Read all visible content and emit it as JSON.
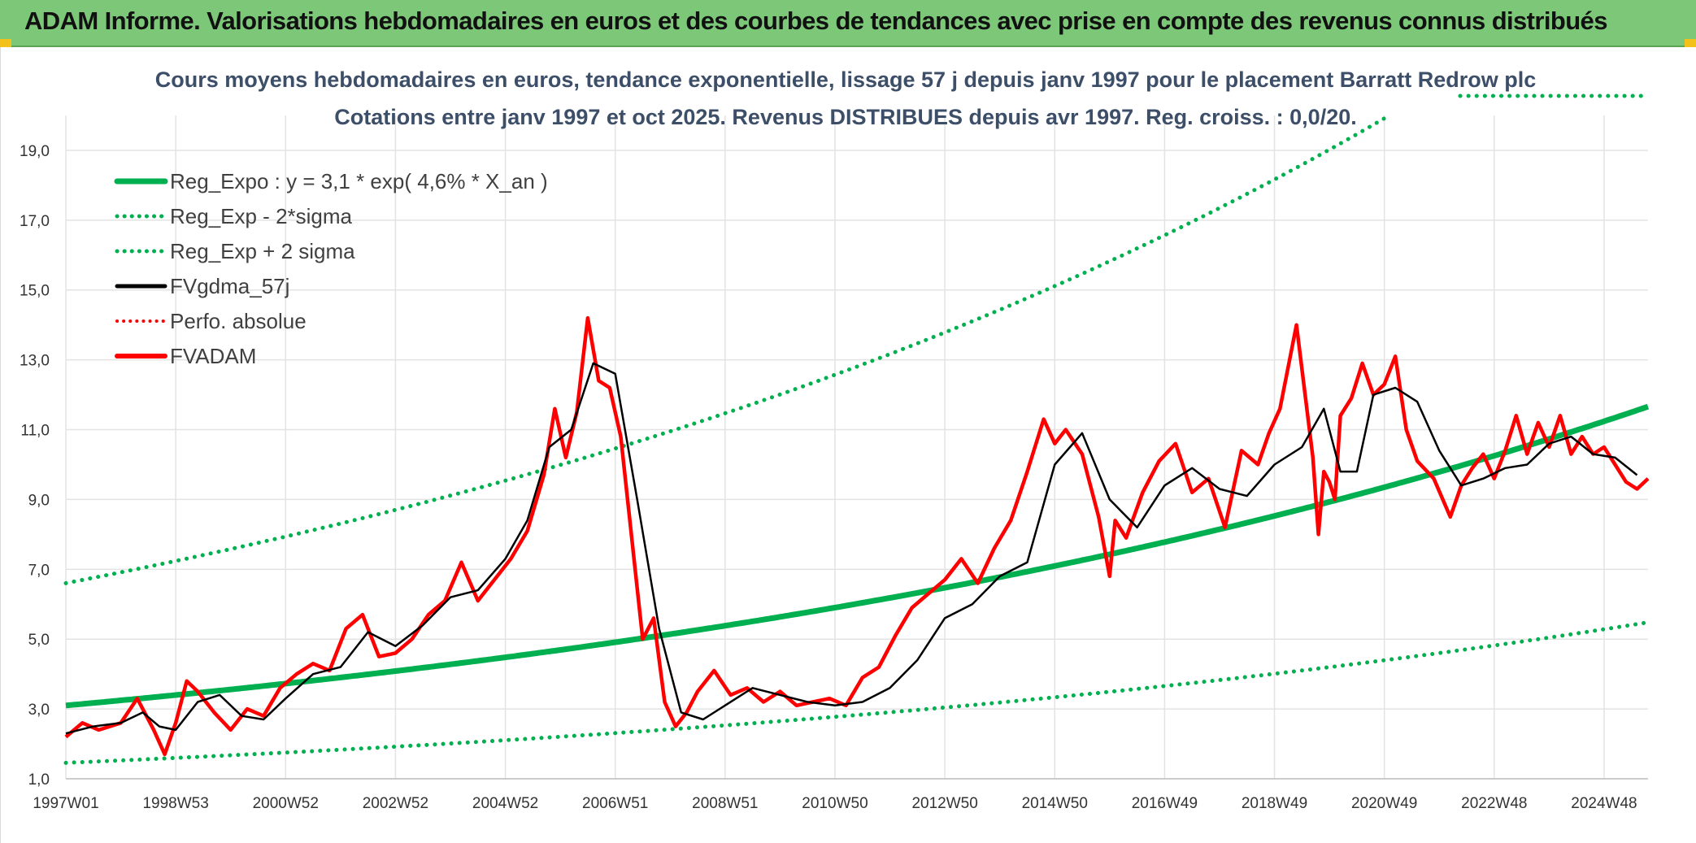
{
  "header": {
    "title": "ADAM Informe. Valorisations hebdomadaires en euros et des courbes de tendances avec prise en compte des revenus connus distribués"
  },
  "colors": {
    "banner": "#7dc878",
    "trend": "#00b050",
    "price": "#ff0000",
    "smooth": "#000000",
    "grid": "#e3e3e3"
  },
  "chart_data": {
    "type": "line",
    "title": "Cours moyens hebdomadaires en euros, tendance exponentielle, lissage 57 j depuis janv 1997 pour le placement Barratt Redrow plc",
    "subtitle": "Cotations entre janv 1997 et oct 2025. Revenus DISTRIBUES depuis avr 1997. Reg. croiss. : 0,0/20.",
    "xlabel": "",
    "ylabel": "",
    "ylim": [
      1,
      20
    ],
    "xlim": [
      1997.0,
      2025.8
    ],
    "grid": true,
    "legend_position": "top-left",
    "y_ticks": [
      "1,0",
      "3,0",
      "5,0",
      "7,0",
      "9,0",
      "11,0",
      "13,0",
      "15,0",
      "17,0",
      "19,0"
    ],
    "y_tick_values": [
      1,
      3,
      5,
      7,
      9,
      11,
      13,
      15,
      17,
      19
    ],
    "x_ticks": [
      "1997W01",
      "1998W53",
      "2000W52",
      "2002W52",
      "2004W52",
      "2006W51",
      "2008W51",
      "2010W50",
      "2012W50",
      "2014W50",
      "2016W49",
      "2018W49",
      "2020W49",
      "2022W48",
      "2024W48"
    ],
    "x_tick_values": [
      1997.0,
      1999.0,
      2001.0,
      2003.0,
      2005.0,
      2007.0,
      2009.0,
      2011.0,
      2013.0,
      2015.0,
      2017.0,
      2019.0,
      2021.0,
      2023.0,
      2025.0
    ],
    "trend": {
      "a": 3.1,
      "rate": 0.046,
      "x0": 1997.0,
      "sigma_lower_factor": 0.47,
      "sigma_upper_factor": 2.13
    },
    "series": [
      {
        "name": "Reg_Expo : y = 3,1 * exp( 4,6% *  X_an )",
        "style": "solid-green",
        "x": [
          1997.0,
          1999.0,
          2001.0,
          2003.0,
          2005.0,
          2007.0,
          2009.0,
          2011.0,
          2013.0,
          2015.0,
          2017.0,
          2019.0,
          2021.0,
          2023.0,
          2025.0,
          2025.8
        ],
        "y": [
          3.1,
          3.4,
          3.7,
          4.1,
          4.5,
          4.9,
          5.4,
          5.9,
          6.5,
          7.1,
          7.8,
          8.5,
          9.3,
          10.2,
          11.2,
          11.9
        ]
      },
      {
        "name": "Reg_Exp - 2*sigma",
        "style": "dotted-green",
        "x": [
          1997.0,
          2001.0,
          2005.0,
          2009.0,
          2013.0,
          2017.0,
          2021.0,
          2025.8
        ],
        "y": [
          1.5,
          1.8,
          2.1,
          2.5,
          3.1,
          3.7,
          4.4,
          5.6
        ]
      },
      {
        "name": "Reg_Exp + 2 sigma",
        "style": "dotted-green",
        "x": [
          1997.0,
          2001.0,
          2005.0,
          2009.0,
          2013.0,
          2017.0,
          2019.6
        ],
        "y": [
          6.6,
          7.9,
          9.5,
          11.4,
          13.8,
          16.6,
          18.8
        ]
      },
      {
        "name": "FVgdma_57j",
        "style": "solid-black",
        "x": [
          1997.0,
          1997.5,
          1998.0,
          1998.4,
          1998.7,
          1999.0,
          1999.4,
          1999.8,
          2000.2,
          2000.6,
          2001.0,
          2001.5,
          2002.0,
          2002.5,
          2003.0,
          2003.5,
          2004.0,
          2004.5,
          2005.0,
          2005.4,
          2005.8,
          2006.2,
          2006.6,
          2007.0,
          2007.4,
          2007.8,
          2008.2,
          2008.6,
          2009.0,
          2009.5,
          2010.0,
          2010.5,
          2011.0,
          2011.5,
          2012.0,
          2012.5,
          2013.0,
          2013.5,
          2014.0,
          2014.5,
          2015.0,
          2015.5,
          2016.0,
          2016.5,
          2017.0,
          2017.5,
          2018.0,
          2018.5,
          2019.0,
          2019.5,
          2019.9,
          2020.2,
          2020.5,
          2020.8,
          2021.2,
          2021.6,
          2022.0,
          2022.4,
          2022.8,
          2023.2,
          2023.6,
          2024.0,
          2024.4,
          2024.8,
          2025.2,
          2025.6
        ],
        "y": [
          2.3,
          2.5,
          2.6,
          2.9,
          2.5,
          2.4,
          3.2,
          3.4,
          2.8,
          2.7,
          3.3,
          4.0,
          4.2,
          5.2,
          4.8,
          5.4,
          6.2,
          6.4,
          7.3,
          8.4,
          10.5,
          11.0,
          12.9,
          12.6,
          9.0,
          5.3,
          2.9,
          2.7,
          3.1,
          3.6,
          3.4,
          3.2,
          3.1,
          3.2,
          3.6,
          4.4,
          5.6,
          6.0,
          6.8,
          7.2,
          10.0,
          10.9,
          9.0,
          8.2,
          9.4,
          9.9,
          9.3,
          9.1,
          10.0,
          10.5,
          11.6,
          9.8,
          9.8,
          12.0,
          12.2,
          11.8,
          10.4,
          9.4,
          9.6,
          9.9,
          10.0,
          10.6,
          10.8,
          10.3,
          10.2,
          9.7
        ]
      },
      {
        "name": "Perfo. absolue",
        "style": "dotted-red",
        "x": [],
        "y": []
      },
      {
        "name": "FVADAM",
        "style": "solid-red",
        "x": [
          1997.0,
          1997.3,
          1997.6,
          1998.0,
          1998.3,
          1998.6,
          1998.8,
          1999.0,
          1999.2,
          1999.4,
          1999.7,
          2000.0,
          2000.3,
          2000.6,
          2000.9,
          2001.2,
          2001.5,
          2001.8,
          2002.1,
          2002.4,
          2002.7,
          2003.0,
          2003.3,
          2003.6,
          2003.9,
          2004.2,
          2004.5,
          2004.8,
          2005.1,
          2005.4,
          2005.7,
          2005.9,
          2006.1,
          2006.3,
          2006.5,
          2006.7,
          2006.9,
          2007.1,
          2007.3,
          2007.5,
          2007.7,
          2007.9,
          2008.1,
          2008.3,
          2008.5,
          2008.8,
          2009.1,
          2009.4,
          2009.7,
          2010.0,
          2010.3,
          2010.6,
          2010.9,
          2011.2,
          2011.5,
          2011.8,
          2012.1,
          2012.4,
          2012.7,
          2013.0,
          2013.3,
          2013.6,
          2013.9,
          2014.2,
          2014.5,
          2014.8,
          2015.0,
          2015.2,
          2015.5,
          2015.8,
          2016.0,
          2016.1,
          2016.3,
          2016.6,
          2016.9,
          2017.2,
          2017.5,
          2017.8,
          2018.1,
          2018.4,
          2018.7,
          2018.9,
          2019.1,
          2019.4,
          2019.7,
          2019.8,
          2019.9,
          2020.0,
          2020.1,
          2020.2,
          2020.4,
          2020.6,
          2020.8,
          2021.0,
          2021.2,
          2021.4,
          2021.6,
          2021.9,
          2022.2,
          2022.4,
          2022.6,
          2022.8,
          2023.0,
          2023.2,
          2023.4,
          2023.6,
          2023.8,
          2024.0,
          2024.2,
          2024.4,
          2024.6,
          2024.8,
          2025.0,
          2025.2,
          2025.4,
          2025.6,
          2025.8
        ],
        "y": [
          2.2,
          2.6,
          2.4,
          2.6,
          3.3,
          2.4,
          1.7,
          2.6,
          3.8,
          3.5,
          2.9,
          2.4,
          3.0,
          2.8,
          3.6,
          4.0,
          4.3,
          4.1,
          5.3,
          5.7,
          4.5,
          4.6,
          5.0,
          5.7,
          6.1,
          7.2,
          6.1,
          6.7,
          7.3,
          8.1,
          9.7,
          11.6,
          10.2,
          11.5,
          14.2,
          12.4,
          12.2,
          10.8,
          7.9,
          5.0,
          5.6,
          3.2,
          2.5,
          2.9,
          3.5,
          4.1,
          3.4,
          3.6,
          3.2,
          3.5,
          3.1,
          3.2,
          3.3,
          3.1,
          3.9,
          4.2,
          5.1,
          5.9,
          6.3,
          6.7,
          7.3,
          6.6,
          7.6,
          8.4,
          9.8,
          11.3,
          10.6,
          11.0,
          10.3,
          8.5,
          6.8,
          8.4,
          7.9,
          9.2,
          10.1,
          10.6,
          9.2,
          9.6,
          8.2,
          10.4,
          10.0,
          10.9,
          11.6,
          14.0,
          10.2,
          8.0,
          9.8,
          9.5,
          9.0,
          11.4,
          11.9,
          12.9,
          12.0,
          12.3,
          13.1,
          11.0,
          10.1,
          9.6,
          8.5,
          9.4,
          9.9,
          10.3,
          9.6,
          10.4,
          11.4,
          10.3,
          11.2,
          10.5,
          11.4,
          10.3,
          10.8,
          10.3,
          10.5,
          10.0,
          9.5,
          9.3,
          9.6
        ]
      }
    ]
  }
}
